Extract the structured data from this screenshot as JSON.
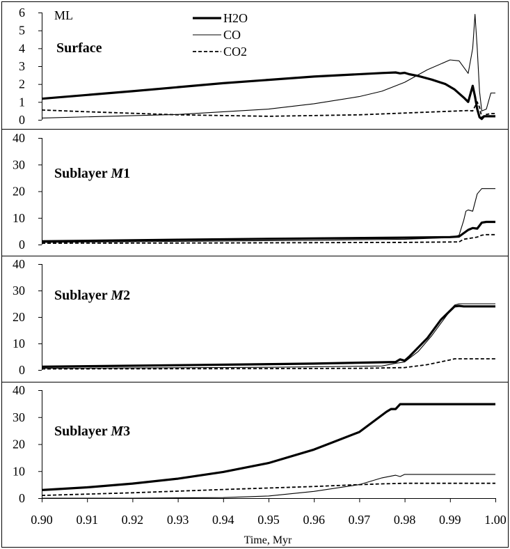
{
  "chart_data": {
    "type": "line",
    "xlabel": "Time, Myr",
    "x_ticks": [
      "0.90",
      "0.91",
      "0.92",
      "0.93",
      "0.94",
      "0.95",
      "0.96",
      "0.97",
      "0.98",
      "0.99",
      "1.00"
    ],
    "xlim": [
      0.9,
      1.0
    ],
    "legend": {
      "position": "top-center",
      "entries": [
        {
          "name": "H2O",
          "style": "thick-solid"
        },
        {
          "name": "CO",
          "style": "thin-solid"
        },
        {
          "name": "CO2",
          "style": "dashed"
        }
      ]
    },
    "panels": [
      {
        "title_plain": "Surface",
        "title_italic": "",
        "title_suffix": "",
        "ylabel": "ML",
        "ylim": [
          0,
          6
        ],
        "y_ticks": [
          "0",
          "1",
          "2",
          "3",
          "4",
          "5",
          "6"
        ],
        "series": [
          {
            "name": "H2O",
            "x": [
              0.9,
              0.92,
              0.94,
              0.96,
              0.975,
              0.978,
              0.979,
              0.98,
              0.981,
              0.983,
              0.986,
              0.989,
              0.991,
              0.993,
              0.994,
              0.995,
              0.9955,
              0.996,
              0.9965,
              0.997,
              0.9975,
              0.998,
              0.999,
              1.001
            ],
            "y": [
              1.18,
              1.6,
              2.05,
              2.42,
              2.62,
              2.65,
              2.6,
              2.63,
              2.55,
              2.45,
              2.25,
              2.0,
              1.7,
              1.25,
              1.0,
              1.9,
              1.3,
              0.6,
              0.15,
              0.05,
              0.2,
              0.2,
              0.2,
              0.2
            ]
          },
          {
            "name": "CO",
            "x": [
              0.9,
              0.93,
              0.95,
              0.96,
              0.97,
              0.975,
              0.98,
              0.985,
              0.99,
              0.992,
              0.994,
              0.995,
              0.9955,
              0.996,
              0.9965,
              0.997,
              0.998,
              0.999,
              1.001
            ],
            "y": [
              0.1,
              0.3,
              0.6,
              0.9,
              1.3,
              1.6,
              2.1,
              2.8,
              3.35,
              3.3,
              2.6,
              4.0,
              5.9,
              4.0,
              1.6,
              0.5,
              0.6,
              1.5,
              1.5
            ]
          },
          {
            "name": "CO2",
            "x": [
              0.9,
              0.91,
              0.93,
              0.95,
              0.97,
              0.99,
              0.992,
              0.994,
              0.995,
              0.996,
              0.9965,
              0.997,
              0.998,
              0.999,
              1.001
            ],
            "y": [
              0.55,
              0.45,
              0.28,
              0.2,
              0.28,
              0.48,
              0.5,
              0.52,
              0.5,
              1.0,
              0.7,
              0.15,
              0.3,
              0.35,
              0.35
            ]
          }
        ]
      },
      {
        "title_plain": "Sublayer ",
        "title_italic": "M",
        "title_suffix": "1",
        "ylabel": "",
        "ylim": [
          0,
          40
        ],
        "y_ticks": [
          "0",
          "10",
          "20",
          "30",
          "40"
        ],
        "series": [
          {
            "name": "H2O",
            "x": [
              0.9,
              0.93,
              0.96,
              0.98,
              0.99,
              0.992,
              0.994,
              0.995,
              0.996,
              0.997,
              0.998,
              1.001
            ],
            "y": [
              1.2,
              1.8,
              2.3,
              2.6,
              2.8,
              3.0,
              5.5,
              6.2,
              6.0,
              8.2,
              8.5,
              8.5
            ]
          },
          {
            "name": "CO",
            "x": [
              0.9,
              0.93,
              0.96,
              0.98,
              0.99,
              0.992,
              0.993,
              0.9935,
              0.994,
              0.995,
              0.996,
              0.997,
              0.998,
              1.001
            ],
            "y": [
              0.8,
              1.2,
              1.6,
              2.0,
              2.6,
              3.5,
              9.0,
              12.5,
              13.0,
              12.5,
              19.0,
              21.0,
              21.0,
              21.0
            ]
          },
          {
            "name": "CO2",
            "x": [
              0.9,
              0.94,
              0.98,
              0.992,
              0.993,
              0.995,
              0.996,
              0.997,
              0.998,
              1.001
            ],
            "y": [
              0.5,
              0.6,
              0.8,
              1.0,
              2.0,
              2.5,
              2.8,
              3.5,
              3.7,
              3.7
            ]
          }
        ]
      },
      {
        "title_plain": "Sublayer ",
        "title_italic": "M",
        "title_suffix": "2",
        "ylabel": "",
        "ylim": [
          0,
          40
        ],
        "y_ticks": [
          "0",
          "10",
          "20",
          "30",
          "40"
        ],
        "series": [
          {
            "name": "H2O",
            "x": [
              0.9,
              0.93,
              0.96,
              0.978,
              0.979,
              0.98,
              0.981,
              0.985,
              0.988,
              0.991,
              0.992,
              0.993,
              1.001
            ],
            "y": [
              1.2,
              1.8,
              2.4,
              3.0,
              4.0,
              3.5,
              5.0,
              12.0,
              19.0,
              24.0,
              24.2,
              24.0,
              24.0
            ]
          },
          {
            "name": "CO",
            "x": [
              0.9,
              0.95,
              0.975,
              0.978,
              0.98,
              0.983,
              0.986,
              0.989,
              0.991,
              0.992,
              1.001
            ],
            "y": [
              0.6,
              1.0,
              1.5,
              2.5,
              3.0,
              7.0,
              13.0,
              20.0,
              24.5,
              25.0,
              25.0
            ]
          },
          {
            "name": "CO2",
            "x": [
              0.9,
              0.95,
              0.97,
              0.98,
              0.985,
              0.99,
              0.991,
              0.992,
              1.001
            ],
            "y": [
              0.4,
              0.5,
              0.6,
              0.9,
              2.0,
              3.8,
              4.2,
              4.2,
              4.2
            ]
          }
        ]
      },
      {
        "title_plain": "Sublayer ",
        "title_italic": "M",
        "title_suffix": "3",
        "ylabel": "",
        "ylim": [
          0,
          40
        ],
        "y_ticks": [
          "0",
          "10",
          "20",
          "30",
          "40"
        ],
        "series": [
          {
            "name": "H2O",
            "x": [
              0.9,
              0.91,
              0.92,
              0.93,
              0.94,
              0.95,
              0.96,
              0.97,
              0.976,
              0.977,
              0.978,
              0.979,
              0.98,
              1.001
            ],
            "y": [
              3.0,
              4.0,
              5.4,
              7.2,
              9.7,
              13.0,
              18.0,
              24.5,
              32.0,
              33.0,
              33.0,
              34.8,
              34.8,
              34.8
            ]
          },
          {
            "name": "CO",
            "x": [
              0.9,
              0.92,
              0.94,
              0.95,
              0.96,
              0.97,
              0.975,
              0.978,
              0.979,
              0.98,
              1.001
            ],
            "y": [
              0.0,
              0.0,
              0.2,
              0.8,
              2.5,
              5.0,
              7.5,
              8.5,
              8.0,
              8.8,
              8.8
            ]
          },
          {
            "name": "CO2",
            "x": [
              0.9,
              0.92,
              0.94,
              0.96,
              0.97,
              0.975,
              0.98,
              1.001
            ],
            "y": [
              1.0,
              2.0,
              3.2,
              4.3,
              5.0,
              5.3,
              5.5,
              5.5
            ]
          }
        ]
      }
    ]
  }
}
